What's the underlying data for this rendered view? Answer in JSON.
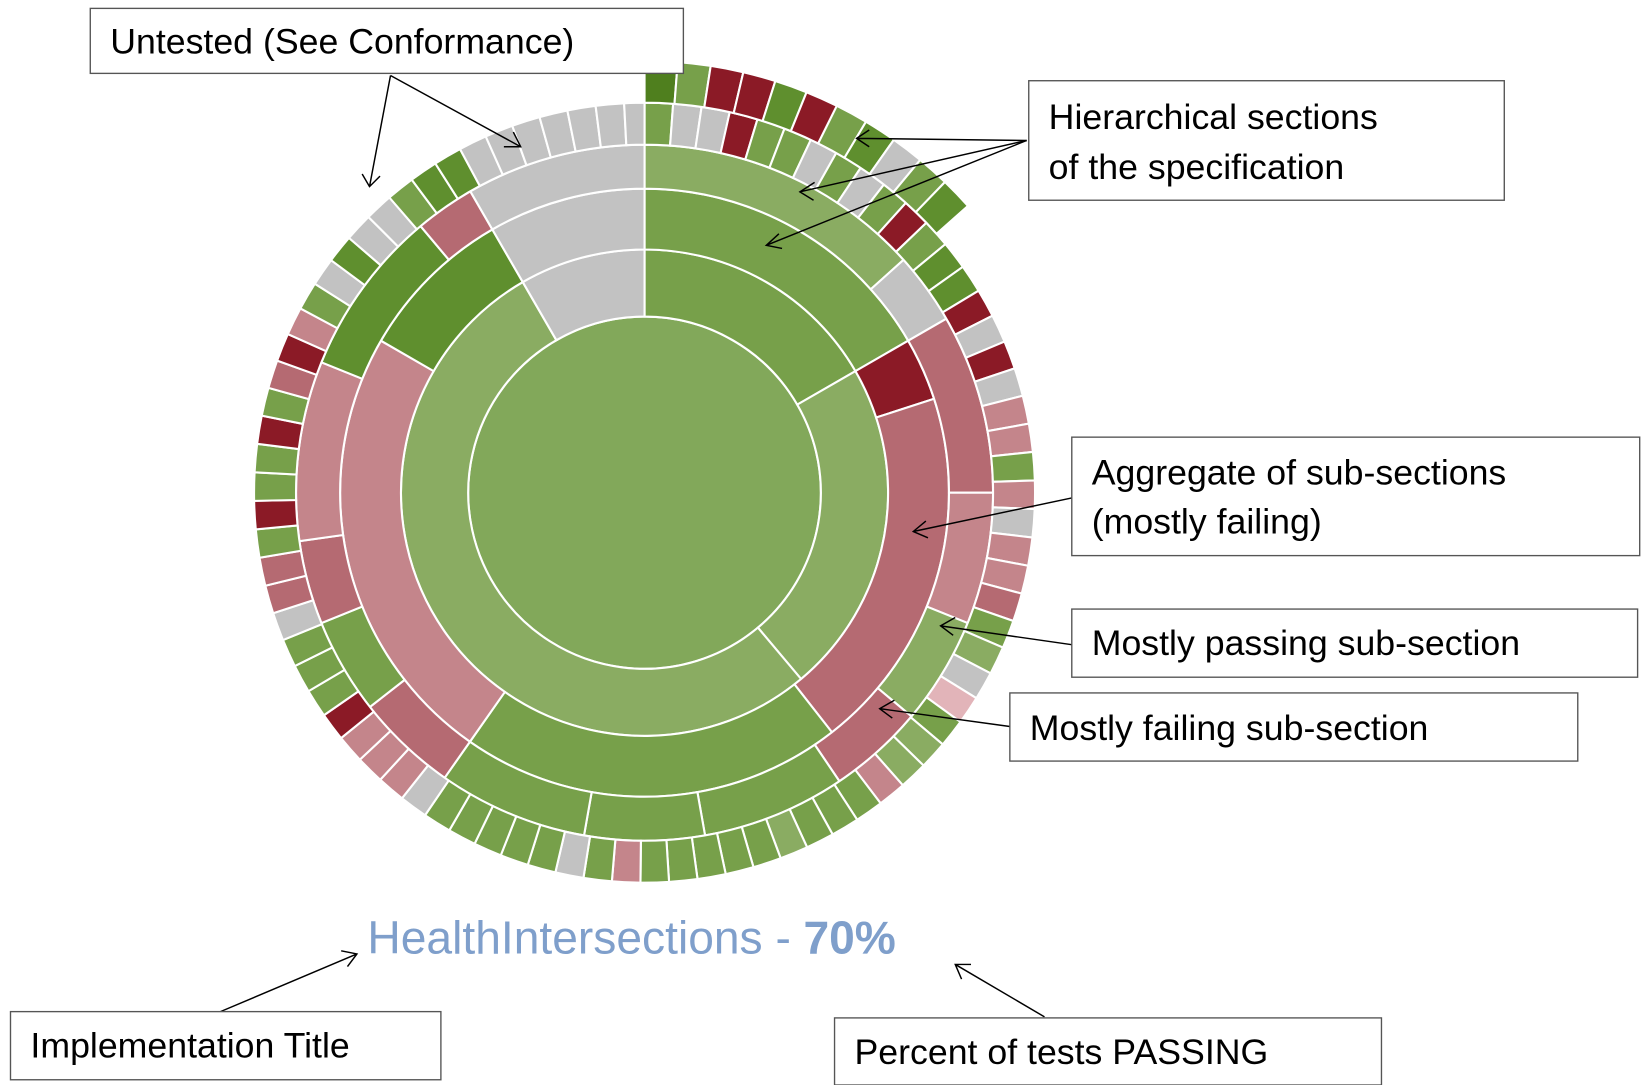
{
  "annotations": {
    "untested": "Untested (See Conformance)",
    "hierarchical": [
      "Hierarchical sections",
      "of the specification"
    ],
    "aggregate": [
      "Aggregate of sub-sections",
      "(mostly failing)"
    ],
    "passing": "Mostly passing sub-section",
    "failing": "Mostly failing sub-section",
    "implementation": "Implementation Title",
    "percent": "Percent of tests PASSING"
  },
  "title": {
    "name": "HealthIntersections -",
    "percent": "70%"
  }
}
